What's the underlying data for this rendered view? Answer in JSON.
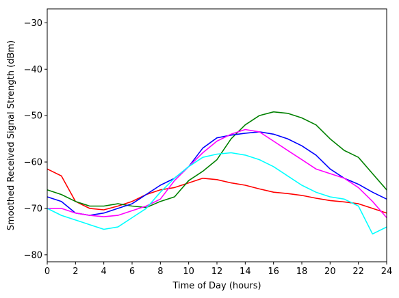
{
  "chart_data": {
    "type": "line",
    "title": "",
    "xlabel": "Time of Day (hours)",
    "ylabel": "Smoothed Received Signal Strength (dBm)",
    "xlim": [
      0,
      24
    ],
    "ylim": [
      -81.5,
      -27
    ],
    "xticks": [
      0,
      2,
      4,
      6,
      8,
      10,
      12,
      14,
      16,
      18,
      20,
      22,
      24
    ],
    "yticks": [
      -80,
      -70,
      -60,
      -50,
      -40,
      -30
    ],
    "grid": false,
    "legend": "none",
    "x": [
      0,
      1,
      2,
      3,
      4,
      5,
      6,
      7,
      8,
      9,
      10,
      11,
      12,
      13,
      14,
      15,
      16,
      17,
      18,
      19,
      20,
      21,
      22,
      23,
      24
    ],
    "series": [
      {
        "color": "#ff0000",
        "values": [
          -61.5,
          -63,
          -68.5,
          -70,
          -70.3,
          -69.5,
          -68.5,
          -67,
          -66,
          -65.5,
          -64.5,
          -63.5,
          -63.8,
          -64.5,
          -65,
          -65.8,
          -66.5,
          -66.8,
          -67.2,
          -67.8,
          -68.3,
          -68.6,
          -69,
          -70,
          -71
        ]
      },
      {
        "color": "#008000",
        "values": [
          -66,
          -67,
          -68.5,
          -69.5,
          -69.5,
          -69,
          -69.5,
          -69.8,
          -68.5,
          -67.5,
          -64,
          -62,
          -59.5,
          -55,
          -52,
          -50,
          -49.2,
          -49.5,
          -50.5,
          -52,
          -55,
          -57.5,
          -59,
          -62.5,
          -66
        ]
      },
      {
        "color": "#0000ff",
        "values": [
          -67.5,
          -68.5,
          -71,
          -71.5,
          -71,
          -70,
          -69,
          -67,
          -65,
          -63.5,
          -61,
          -57,
          -54.8,
          -54.2,
          -53.8,
          -53.5,
          -54,
          -55,
          -56.5,
          -58.5,
          -61.5,
          -63.5,
          -64.8,
          -66.5,
          -68
        ]
      },
      {
        "color": "#ff00ff",
        "values": [
          -70,
          -70,
          -71,
          -71.5,
          -71.8,
          -71.5,
          -70.5,
          -69.5,
          -68,
          -64,
          -61,
          -58,
          -55.5,
          -54,
          -53,
          -53.5,
          -55.5,
          -57.5,
          -59.5,
          -61.5,
          -62.5,
          -63.5,
          -65.5,
          -68.5,
          -72
        ]
      },
      {
        "color": "#00ffff",
        "values": [
          -70,
          -71.5,
          -72.5,
          -73.5,
          -74.5,
          -74,
          -72,
          -70,
          -66.5,
          -63.5,
          -61,
          -59,
          -58.3,
          -58,
          -58.5,
          -59.5,
          -61,
          -63,
          -65,
          -66.5,
          -67.5,
          -68,
          -69.5,
          -75.5,
          -74
        ]
      }
    ]
  }
}
